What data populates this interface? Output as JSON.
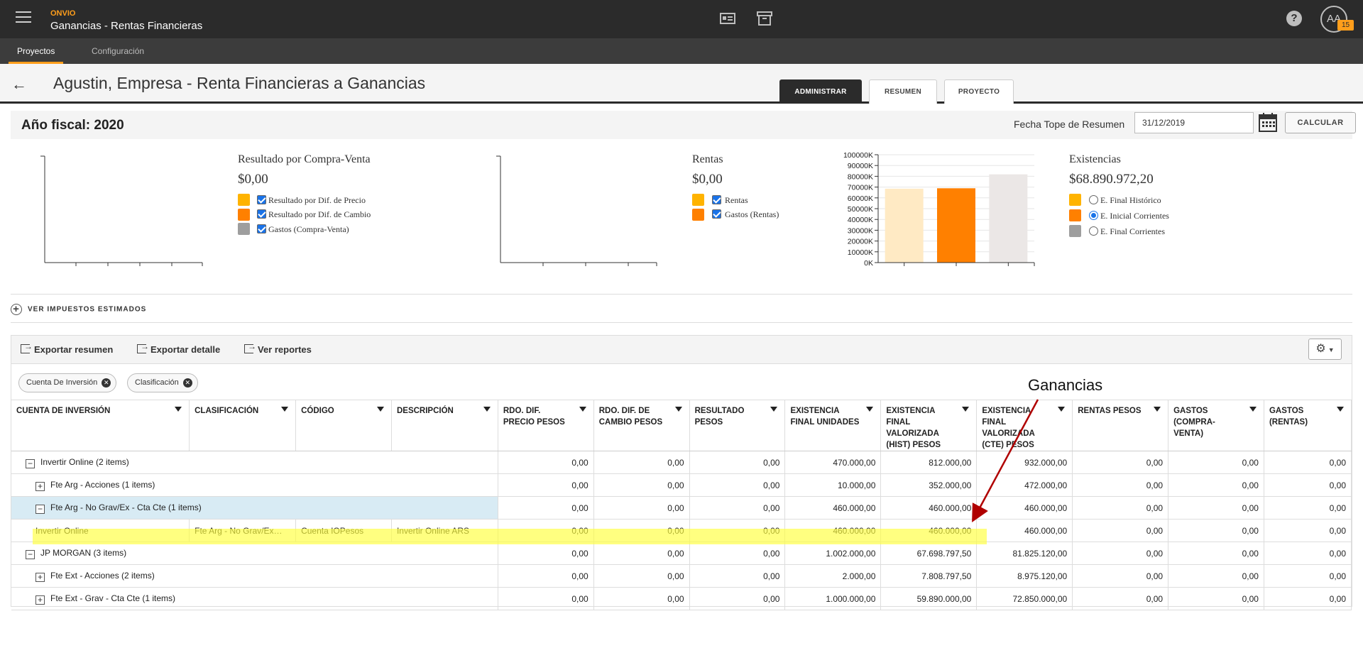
{
  "topbar": {
    "brand": "ONVIO",
    "title": "Ganancias - Rentas Financieras",
    "help": "?",
    "avatar": "AA",
    "badge": "15"
  },
  "subnav": {
    "tabs": [
      "Proyectos",
      "Configuración"
    ]
  },
  "header": {
    "title": "Agustin, Empresa - Renta Financieras a Ganancias",
    "tabs": [
      "ADMINISTRAR",
      "RESUMEN",
      "PROYECTO"
    ]
  },
  "fiscal": {
    "title": "Año fiscal: 2020",
    "fecha_label": "Fecha Tope de Resumen",
    "fecha_value": "31/12/2019",
    "calc_label": "CALCULAR"
  },
  "panels": {
    "compra_venta": {
      "title": "Resultado por Compra-Venta",
      "value": "$0,00",
      "legend": [
        "Resultado por Dif. de Precio",
        "Resultado por Dif. de Cambio",
        "Gastos (Compra-Venta)"
      ]
    },
    "rentas": {
      "title": "Rentas",
      "value": "$0,00",
      "legend": [
        "Rentas",
        "Gastos (Rentas)"
      ]
    },
    "existencias": {
      "title": "Existencias",
      "value": "$68.890.972,20",
      "legend": [
        "E. Final Histórico",
        "E. Inicial Corrientes",
        "E. Final Corrientes"
      ]
    }
  },
  "colors": {
    "orange": "#ff8000",
    "amber": "#ffb300",
    "grey": "#9e9e9e",
    "light_amber": "#ffeac4",
    "light_grey": "#ebe7e6"
  },
  "chart_data": {
    "type": "bar",
    "categories": [
      "E. Final Histórico",
      "E. Inicial Corrientes",
      "E. Final Corrientes"
    ],
    "values": [
      68500000,
      68890972,
      81825120
    ],
    "ylim": [
      0,
      100000000
    ],
    "yticks": [
      "0K",
      "10000K",
      "20000K",
      "30000K",
      "40000K",
      "50000K",
      "60000K",
      "70000K",
      "80000K",
      "90000K",
      "100000K"
    ],
    "colors": [
      "#ffeac4",
      "#ff8000",
      "#ebe7e6"
    ],
    "grid": true
  },
  "ver_impuestos": "VER IMPUESTOS ESTIMADOS",
  "toolbar": {
    "exportar_resumen": "Exportar resumen",
    "exportar_detalle": "Exportar detalle",
    "ver_reportes": "Ver reportes"
  },
  "chips": [
    "Cuenta De Inversión",
    "Clasificación"
  ],
  "columns": [
    "CUENTA DE INVERSIÓN",
    "CLASIFICACIÓN",
    "CÓDIGO",
    "DESCRIPCIÓN",
    "RDO. DIF. PRECIO PESOS",
    "RDO. DIF. DE CAMBIO PESOS",
    "RESULTADO PESOS",
    "EXISTENCIA FINAL UNIDADES",
    "EXISTENCIA FINAL VALORIZADA (HIST) PESOS",
    "EXISTENCIA FINAL VALORIZADA (CTE) PESOS",
    "RENTAS PESOS",
    "GASTOS (COMPRA-VENTA)",
    "GASTOS (RENTAS)"
  ],
  "rows": [
    {
      "kind": "group",
      "toggle": "−",
      "label": "Invertir Online (2 items)",
      "values": [
        "0,00",
        "0,00",
        "0,00",
        "470.000,00",
        "812.000,00",
        "932.000,00",
        "0,00",
        "0,00",
        "0,00"
      ]
    },
    {
      "kind": "sub",
      "toggle": "+",
      "label": "Fte Arg - Acciones (1 items)",
      "values": [
        "0,00",
        "0,00",
        "0,00",
        "10.000,00",
        "352.000,00",
        "472.000,00",
        "0,00",
        "0,00",
        "0,00"
      ]
    },
    {
      "kind": "sub",
      "toggle": "−",
      "label": "Fte Arg - No Grav/Ex - Cta Cte (1 items)",
      "values": [
        "0,00",
        "0,00",
        "0,00",
        "460.000,00",
        "460.000,00",
        "460.000,00",
        "0,00",
        "0,00",
        "0,00"
      ]
    },
    {
      "kind": "leaf",
      "cells": [
        "Invertir Online",
        "Fte Arg - No Grav/Ex…",
        "Cuenta IOPesos",
        "Invertir Online ARS"
      ],
      "values": [
        "0,00",
        "0,00",
        "0,00",
        "460.000,00",
        "460.000,00",
        "460.000,00",
        "0,00",
        "0,00",
        "0,00"
      ]
    },
    {
      "kind": "group",
      "toggle": "−",
      "label": "JP MORGAN (3 items)",
      "values": [
        "0,00",
        "0,00",
        "0,00",
        "1.002.000,00",
        "67.698.797,50",
        "81.825.120,00",
        "0,00",
        "0,00",
        "0,00"
      ]
    },
    {
      "kind": "sub",
      "toggle": "+",
      "label": "Fte Ext - Acciones (2 items)",
      "values": [
        "0,00",
        "0,00",
        "0,00",
        "2.000,00",
        "7.808.797,50",
        "8.975.120,00",
        "0,00",
        "0,00",
        "0,00"
      ]
    },
    {
      "kind": "sub",
      "toggle": "+",
      "label": "Fte Ext - Grav - Cta Cte (1 items)",
      "values": [
        "0,00",
        "0,00",
        "0,00",
        "1.000.000,00",
        "59.890.000,00",
        "72.850.000,00",
        "0,00",
        "0,00",
        "0,00"
      ]
    }
  ],
  "annotation": {
    "label": "Ganancias"
  }
}
